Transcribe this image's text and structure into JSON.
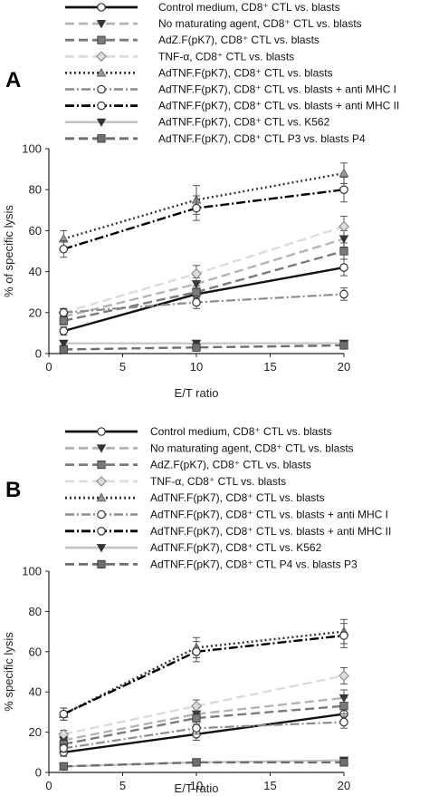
{
  "chart_data": [
    {
      "type": "line",
      "panel_label": "A",
      "xlabel": "E/T ratio",
      "ylabel": "% of specific lysis",
      "xlim": [
        0,
        20
      ],
      "ylim": [
        0,
        100
      ],
      "xticks": [
        "0",
        "5",
        "10",
        "15",
        "20"
      ],
      "yticks": [
        "0",
        "20",
        "40",
        "60",
        "80",
        "100"
      ],
      "legend_position": "top",
      "x": [
        1,
        10,
        20
      ],
      "series": [
        {
          "name": "Control medium, CD8⁺ CTL vs. blasts",
          "values": [
            11,
            29,
            42
          ],
          "errors": [
            2,
            3,
            4
          ],
          "color": "#111111",
          "dash": "",
          "width": 2.4,
          "marker": "circle-open"
        },
        {
          "name": "No maturating agent, CD8⁺ CTL vs. blasts",
          "values": [
            18,
            34,
            56
          ],
          "errors": [
            2,
            3,
            4
          ],
          "color": "#b4b4b4",
          "dash": "10,5",
          "width": 2.4,
          "marker": "tri-down"
        },
        {
          "name": "AdZ.F(pK7), CD8⁺ CTL vs. blasts",
          "values": [
            16,
            30,
            50
          ],
          "errors": [
            2,
            3,
            4
          ],
          "color": "#7a7a7a",
          "dash": "10,5",
          "width": 2.4,
          "marker": "square"
        },
        {
          "name": "TNF-α, CD8⁺ CTL vs. blasts",
          "values": [
            20,
            39,
            62
          ],
          "errors": [
            2,
            4,
            5
          ],
          "color": "#dcdcdc",
          "dash": "10,5",
          "width": 2.4,
          "marker": "diamond"
        },
        {
          "name": "AdTNF.F(pK7), CD8⁺ CTL vs. blasts",
          "values": [
            56,
            75,
            88
          ],
          "errors": [
            4,
            7,
            5
          ],
          "color": "#333333",
          "dash": "2,3",
          "width": 2.4,
          "marker": "tri-up"
        },
        {
          "name": "AdTNF.F(pK7), CD8⁺ CTL vs. blasts + anti MHC I",
          "values": [
            20,
            25,
            29
          ],
          "errors": [
            2,
            3,
            3
          ],
          "color": "#8c8c8c",
          "dash": "10,3,2,3",
          "width": 2.2,
          "marker": "circle-open"
        },
        {
          "name": "AdTNF.F(pK7), CD8⁺ CTL vs. blasts  + anti MHC II",
          "values": [
            51,
            71,
            80
          ],
          "errors": [
            4,
            6,
            6
          ],
          "color": "#000000",
          "dash": "10,3,2,3",
          "width": 2.4,
          "marker": "circle-open"
        },
        {
          "name": "AdTNF.F(pK7), CD8⁺ CTL vs. K562",
          "values": [
            5,
            5,
            5
          ],
          "errors": [
            1,
            1,
            1
          ],
          "color": "#c4c4c4",
          "dash": "",
          "width": 2.2,
          "marker": "tri-down"
        },
        {
          "name": "AdTNF.F(pK7), CD8⁺ CTL P3 vs. blasts P4",
          "values": [
            2,
            3,
            4
          ],
          "errors": [
            1,
            1,
            1
          ],
          "color": "#6e6e6e",
          "dash": "10,5",
          "width": 2.4,
          "marker": "square"
        }
      ]
    },
    {
      "type": "line",
      "panel_label": "B",
      "xlabel": "E/T ratio",
      "ylabel": "% specific lysis",
      "xlim": [
        0,
        20
      ],
      "ylim": [
        0,
        100
      ],
      "xticks": [
        "0",
        "5",
        "10",
        "15",
        "20"
      ],
      "yticks": [
        "0",
        "20",
        "40",
        "60",
        "80",
        "100"
      ],
      "legend_position": "top",
      "x": [
        1,
        10,
        20
      ],
      "series": [
        {
          "name": "Control medium, CD8⁺ CTL vs. blasts",
          "values": [
            10,
            19,
            29
          ],
          "errors": [
            2,
            3,
            3
          ],
          "color": "#111111",
          "dash": "",
          "width": 2.4,
          "marker": "circle-open"
        },
        {
          "name": "No maturating agent, CD8⁺ CTL vs. blasts",
          "values": [
            16,
            29,
            37
          ],
          "errors": [
            2,
            3,
            4
          ],
          "color": "#b4b4b4",
          "dash": "10,5",
          "width": 2.4,
          "marker": "tri-down"
        },
        {
          "name": "AdZ.F(pK7), CD8⁺ CTL vs. blasts",
          "values": [
            14,
            27,
            33
          ],
          "errors": [
            2,
            3,
            4
          ],
          "color": "#7a7a7a",
          "dash": "10,5",
          "width": 2.4,
          "marker": "square"
        },
        {
          "name": "TNF-α, CD8⁺ CTL vs. blasts",
          "values": [
            19,
            33,
            48
          ],
          "errors": [
            2,
            3,
            4
          ],
          "color": "#dcdcdc",
          "dash": "10,5",
          "width": 2.4,
          "marker": "diamond"
        },
        {
          "name": "AdTNF.F(pK7), CD8⁺ CTL vs. blasts",
          "values": [
            29,
            62,
            70
          ],
          "errors": [
            3,
            5,
            6
          ],
          "color": "#333333",
          "dash": "2,3",
          "width": 2.4,
          "marker": "tri-up"
        },
        {
          "name": "AdTNF.F(pK7), CD8⁺ CTL vs. blasts + anti MHC I",
          "values": [
            12,
            22,
            25
          ],
          "errors": [
            2,
            3,
            3
          ],
          "color": "#8c8c8c",
          "dash": "10,3,2,3",
          "width": 2.2,
          "marker": "circle-open"
        },
        {
          "name": "AdTNF.F(pK7), CD8⁺ CTL vs. blasts  + anti MHC II",
          "values": [
            29,
            60,
            68
          ],
          "errors": [
            3,
            5,
            6
          ],
          "color": "#000000",
          "dash": "10,3,2,3",
          "width": 2.4,
          "marker": "circle-open"
        },
        {
          "name": "AdTNF.F(pK7), CD8⁺ CTL vs. K562",
          "values": [
            3,
            5,
            6
          ],
          "errors": [
            1,
            1,
            1
          ],
          "color": "#c4c4c4",
          "dash": "",
          "width": 2.2,
          "marker": "tri-down"
        },
        {
          "name": "AdTNF.F(pK7), CD8⁺ CTL P4 vs. blasts P3",
          "values": [
            3,
            5,
            5
          ],
          "errors": [
            1,
            1,
            1
          ],
          "color": "#6e6e6e",
          "dash": "10,5",
          "width": 2.4,
          "marker": "square"
        }
      ]
    }
  ]
}
